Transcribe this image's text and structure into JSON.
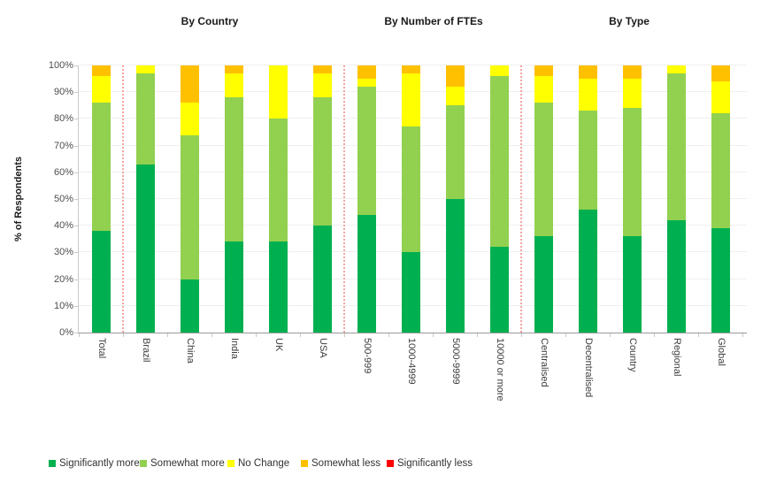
{
  "header": {
    "sections": [
      {
        "label": "By Country"
      },
      {
        "label": "By Number of FTEs"
      },
      {
        "label": "By Type"
      }
    ]
  },
  "y_axis_title": "% of Respondents",
  "legend": {
    "items": [
      {
        "label": "Significantly more",
        "color": "#00B050"
      },
      {
        "label": "Somewhat more",
        "color": "#92D050"
      },
      {
        "label": "No Change",
        "color": "#FFFF00"
      },
      {
        "label": "Somewhat less",
        "color": "#FFC000"
      },
      {
        "label": "Significantly less",
        "color": "#FF0000"
      }
    ]
  },
  "chart_data": {
    "type": "bar",
    "stacked": true,
    "unit": "percent of respondents",
    "categories": [
      "Total",
      "Brazil",
      "China",
      "India",
      "UK",
      "USA",
      "500-999",
      "1000-4999",
      "5000-9999",
      "10000 or more",
      "Centralised",
      "Decentralised",
      "Country",
      "Regional",
      "Global"
    ],
    "groups": [
      {
        "label": "",
        "categories": [
          "Total"
        ]
      },
      {
        "label": "By Country",
        "categories": [
          "Brazil",
          "China",
          "India",
          "UK",
          "USA"
        ]
      },
      {
        "label": "By Number of FTEs",
        "categories": [
          "500-999",
          "1000-4999",
          "5000-9999",
          "10000 or more"
        ]
      },
      {
        "label": "By Type",
        "categories": [
          "Centralised",
          "Decentralised",
          "Country",
          "Regional",
          "Global"
        ]
      }
    ],
    "series": [
      {
        "name": "Significantly more",
        "color": "#00B050",
        "values": [
          38,
          63,
          20,
          34,
          34,
          40,
          44,
          30,
          50,
          32,
          36,
          46,
          36,
          42,
          39
        ]
      },
      {
        "name": "Somewhat more",
        "color": "#92D050",
        "values": [
          48,
          34,
          54,
          54,
          46,
          48,
          48,
          47,
          35,
          64,
          50,
          37,
          48,
          55,
          43
        ]
      },
      {
        "name": "No Change",
        "color": "#FFFF00",
        "values": [
          10,
          3,
          12,
          9,
          20,
          9,
          3,
          20,
          7,
          4,
          10,
          12,
          11,
          3,
          12
        ]
      },
      {
        "name": "Somewhat less",
        "color": "#FFC000",
        "values": [
          4,
          0,
          14,
          3,
          0,
          3,
          5,
          3,
          8,
          0,
          4,
          5,
          5,
          0,
          6
        ]
      },
      {
        "name": "Significantly less",
        "color": "#FF0000",
        "values": [
          0,
          0,
          0,
          0,
          0,
          0,
          0,
          0,
          0,
          0,
          0,
          0,
          0,
          0,
          0
        ]
      }
    ],
    "ylabel": "% of Respondents",
    "ylim": [
      0,
      100
    ],
    "ytick_labels": [
      "0%",
      "10%",
      "20%",
      "30%",
      "40%",
      "50%",
      "60%",
      "70%",
      "80%",
      "90%",
      "100%"
    ],
    "grid": "horizontal",
    "separator_after": [
      "Total",
      "USA",
      "10000 or more"
    ],
    "separator_color": "#F5A3A3",
    "legend_position": "bottom"
  }
}
